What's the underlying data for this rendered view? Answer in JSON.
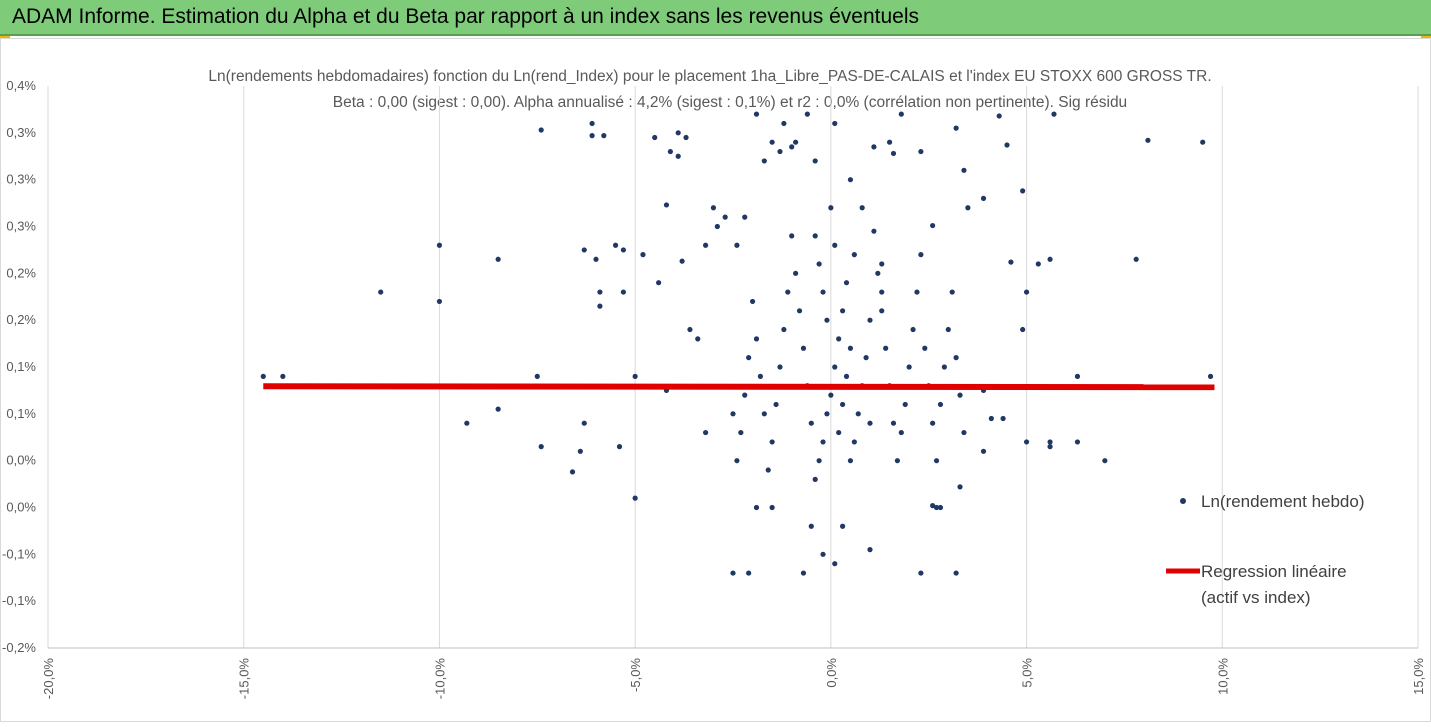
{
  "banner": {
    "title": "ADAM Informe. Estimation du Alpha et du Beta par rapport à un index sans les revenus éventuels",
    "background": "#7ecb7a"
  },
  "chart_data": {
    "type": "scatter",
    "title": "Ln(rendements hebdomadaires) fonction du Ln(rend_Index) pour le placement 1ha_Libre_PAS-DE-CALAIS et l'index EU STOXX 600 GROSS TR.",
    "subtitle": "Beta : 0,00 (sigest : 0,00). Alpha annualisé : 4,2% (sigest : 0,1%) et r2 : 0,0% (corrélation non pertinente). Sig résidu",
    "xlim": [
      -20,
      15
    ],
    "ylim": [
      -0.2,
      0.4
    ],
    "x_ticks": [
      -20,
      -15,
      -10,
      -5,
      0,
      5,
      10,
      15
    ],
    "x_tick_labels": [
      "-20,0%",
      "-15,0%",
      "-10,0%",
      "-5,0%",
      "0,0%",
      "5,0%",
      "10,0%",
      "15,0%"
    ],
    "y_ticks": [
      -0.2,
      -0.15,
      -0.1,
      -0.05,
      0.0,
      0.05,
      0.1,
      0.15,
      0.2,
      0.25,
      0.3,
      0.35,
      0.4
    ],
    "y_tick_labels": [
      "-0,2%",
      "-0,1%",
      "-0,1%",
      "0,0%",
      "0,0%",
      "0,1%",
      "0,1%",
      "0,2%",
      "0,2%",
      "0,3%",
      "0,3%",
      "0,3%",
      "0,4%"
    ],
    "grid": "vertical",
    "legend_position": "right",
    "series": [
      {
        "name": "Ln(rendement hebdo)",
        "kind": "scatter",
        "color": "#1f3864",
        "points": [
          [
            -14.5,
            0.09
          ],
          [
            -14,
            0.09
          ],
          [
            -11.5,
            0.18
          ],
          [
            -10,
            0.23
          ],
          [
            -10,
            0.17
          ],
          [
            -9.3,
            0.04
          ],
          [
            -8.5,
            0.215
          ],
          [
            -8.5,
            0.055
          ],
          [
            -7.5,
            0.09
          ],
          [
            -7.4,
            0.015
          ],
          [
            -7.4,
            0.353
          ],
          [
            -6.3,
            0.225
          ],
          [
            -6.3,
            0.04
          ],
          [
            -6.4,
            0.01
          ],
          [
            -6.6,
            -0.012
          ],
          [
            -6.1,
            0.36
          ],
          [
            -6.1,
            0.347
          ],
          [
            -5.8,
            0.347
          ],
          [
            -5.9,
            0.165
          ],
          [
            -5.9,
            0.18
          ],
          [
            -6,
            0.215
          ],
          [
            -5.5,
            0.23
          ],
          [
            -5.4,
            0.015
          ],
          [
            -5.3,
            0.225
          ],
          [
            -5.3,
            0.18
          ],
          [
            -5,
            0.09
          ],
          [
            -5,
            -0.04
          ],
          [
            -4.8,
            0.22
          ],
          [
            -4.5,
            0.345
          ],
          [
            -4.4,
            0.19
          ],
          [
            -4.2,
            0.075
          ],
          [
            -4.2,
            0.273
          ],
          [
            -4.1,
            0.33
          ],
          [
            -3.9,
            0.325
          ],
          [
            -3.9,
            0.35
          ],
          [
            -3.8,
            0.213
          ],
          [
            -3.7,
            0.345
          ],
          [
            -3.6,
            0.14
          ],
          [
            -3.2,
            0.03
          ],
          [
            -3.2,
            0.23
          ],
          [
            -3.4,
            0.13
          ],
          [
            -3,
            0.27
          ],
          [
            -2.9,
            0.25
          ],
          [
            -2.7,
            0.26
          ],
          [
            -2.5,
            -0.12
          ],
          [
            -2.4,
            0.23
          ],
          [
            -2.2,
            0.26
          ],
          [
            -2.1,
            -0.12
          ],
          [
            -1.9,
            0.37
          ],
          [
            -1.7,
            0.32
          ],
          [
            -1.5,
            0.34
          ],
          [
            -1.3,
            0.33
          ],
          [
            -1.2,
            0.36
          ],
          [
            -1.0,
            0.335
          ],
          [
            -0.9,
            0.34
          ],
          [
            -0.6,
            0.37
          ],
          [
            -0.4,
            0.32
          ],
          [
            0.1,
            0.36
          ],
          [
            0.5,
            0.3
          ],
          [
            1.1,
            0.335
          ],
          [
            1.5,
            0.34
          ],
          [
            1.6,
            0.328
          ],
          [
            1.8,
            0.37
          ],
          [
            2.3,
            0.33
          ],
          [
            2.6,
            0.251
          ],
          [
            3.2,
            0.355
          ],
          [
            3.4,
            0.31
          ],
          [
            3.5,
            0.27
          ],
          [
            3.9,
            0.28
          ],
          [
            4.3,
            0.368
          ],
          [
            4.5,
            0.337
          ],
          [
            4.6,
            0.212
          ],
          [
            4.9,
            0.288
          ],
          [
            5,
            0.18
          ],
          [
            5.3,
            0.21
          ],
          [
            5.6,
            0.215
          ],
          [
            5.7,
            0.37
          ],
          [
            4.9,
            0.14
          ],
          [
            3.9,
            0.075
          ],
          [
            4.4,
            0.045
          ],
          [
            3.9,
            0.01
          ],
          [
            4.1,
            0.045
          ],
          [
            5,
            0.02
          ],
          [
            5.6,
            0.02
          ],
          [
            5.6,
            0.015
          ],
          [
            6.3,
            0.02
          ],
          [
            6.3,
            0.09
          ],
          [
            7,
            0.0
          ],
          [
            7.8,
            0.215
          ],
          [
            8.1,
            0.342
          ],
          [
            9.5,
            0.34
          ],
          [
            9.7,
            0.09
          ],
          [
            2.3,
            -0.12
          ],
          [
            3.2,
            -0.12
          ],
          [
            3.3,
            -0.028
          ],
          [
            2.6,
            -0.048
          ],
          [
            1.0,
            -0.095
          ],
          [
            -0.2,
            -0.1
          ],
          [
            0.1,
            -0.11
          ],
          [
            -0.5,
            -0.07
          ],
          [
            0.3,
            -0.07
          ],
          [
            -0.7,
            -0.12
          ],
          [
            -1.5,
            -0.05
          ],
          [
            -1.9,
            -0.05
          ],
          [
            2.8,
            -0.05
          ],
          [
            2.7,
            -0.05
          ],
          [
            1.1,
            0.245
          ],
          [
            1.3,
            0.21
          ],
          [
            1.3,
            0.18
          ],
          [
            1.0,
            0.15
          ],
          [
            0.8,
            0.27
          ],
          [
            0.6,
            0.22
          ],
          [
            0.4,
            0.19
          ],
          [
            0.3,
            0.16
          ],
          [
            0.2,
            0.13
          ],
          [
            0.1,
            0.1
          ],
          [
            0.0,
            0.07
          ],
          [
            -0.1,
            0.05
          ],
          [
            -0.2,
            0.02
          ],
          [
            -0.3,
            0.0
          ],
          [
            -0.4,
            -0.02
          ],
          [
            -0.5,
            0.04
          ],
          [
            -0.6,
            0.08
          ],
          [
            -0.7,
            0.12
          ],
          [
            -0.8,
            0.16
          ],
          [
            -0.9,
            0.2
          ],
          [
            -1.0,
            0.24
          ],
          [
            -1.1,
            0.18
          ],
          [
            -1.2,
            0.14
          ],
          [
            -1.3,
            0.1
          ],
          [
            -1.4,
            0.06
          ],
          [
            -1.5,
            0.02
          ],
          [
            -1.6,
            -0.01
          ],
          [
            -1.7,
            0.05
          ],
          [
            -1.8,
            0.09
          ],
          [
            -1.9,
            0.13
          ],
          [
            -2.0,
            0.17
          ],
          [
            -2.1,
            0.11
          ],
          [
            -2.2,
            0.07
          ],
          [
            -2.3,
            0.03
          ],
          [
            -2.4,
            0.0
          ],
          [
            -2.5,
            0.05
          ],
          [
            2.0,
            0.1
          ],
          [
            1.9,
            0.06
          ],
          [
            1.8,
            0.03
          ],
          [
            1.7,
            0.0
          ],
          [
            1.6,
            0.04
          ],
          [
            1.5,
            0.08
          ],
          [
            1.4,
            0.12
          ],
          [
            1.3,
            0.16
          ],
          [
            1.2,
            0.2
          ],
          [
            2.1,
            0.14
          ],
          [
            2.2,
            0.18
          ],
          [
            2.3,
            0.22
          ],
          [
            2.4,
            0.12
          ],
          [
            2.5,
            0.08
          ],
          [
            2.6,
            0.04
          ],
          [
            2.7,
            0.0
          ],
          [
            2.8,
            0.06
          ],
          [
            2.9,
            0.1
          ],
          [
            3.0,
            0.14
          ],
          [
            3.1,
            0.18
          ],
          [
            3.2,
            0.11
          ],
          [
            3.3,
            0.07
          ],
          [
            3.4,
            0.03
          ],
          [
            0.5,
            0.0
          ],
          [
            0.6,
            0.02
          ],
          [
            0.7,
            0.05
          ],
          [
            0.8,
            0.08
          ],
          [
            0.9,
            0.11
          ],
          [
            1.0,
            0.04
          ],
          [
            0.2,
            0.03
          ],
          [
            0.3,
            0.06
          ],
          [
            0.4,
            0.09
          ],
          [
            0.5,
            0.12
          ],
          [
            -0.1,
            0.15
          ],
          [
            -0.2,
            0.18
          ],
          [
            -0.3,
            0.21
          ],
          [
            -0.4,
            0.24
          ],
          [
            0.0,
            0.27
          ],
          [
            0.1,
            0.23
          ]
        ]
      },
      {
        "name": "Regression linéaire (actif vs index)",
        "legend_lines": [
          "Regression linéaire",
          "(actif vs index)"
        ],
        "kind": "line",
        "color": "#e00000",
        "x": [
          -14.5,
          9.8
        ],
        "y": [
          0.0795,
          0.0785
        ]
      }
    ]
  }
}
